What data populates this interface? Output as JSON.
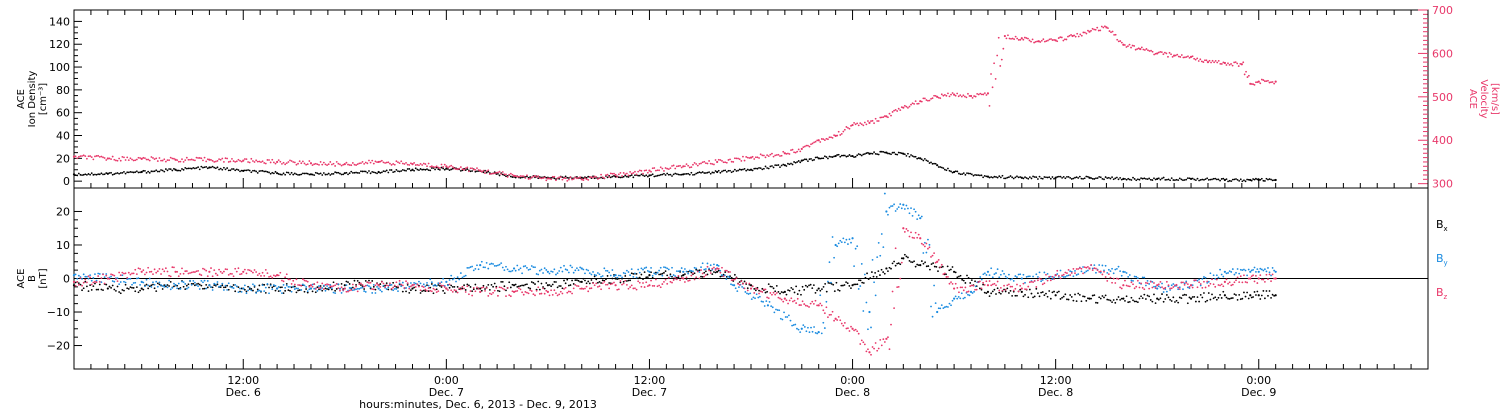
{
  "colors": {
    "black": "#000000",
    "red": "#e8386a",
    "blue": "#1a8be0"
  },
  "x_axis": {
    "ticks": [
      {
        "hours": 12,
        "time": "12:00",
        "date": "Dec. 6"
      },
      {
        "hours": 24,
        "time": "0:00",
        "date": "Dec. 7"
      },
      {
        "hours": 36,
        "time": "12:00",
        "date": "Dec. 7"
      },
      {
        "hours": 48,
        "time": "0:00",
        "date": "Dec. 8"
      },
      {
        "hours": 60,
        "time": "12:00",
        "date": "Dec. 8"
      },
      {
        "hours": 72,
        "time": "0:00",
        "date": "Dec. 9"
      }
    ],
    "xlabel": "hours:minutes, Dec.  6, 2013 - Dec.  9, 2013"
  },
  "chart_data": [
    {
      "type": "scatter",
      "panel": "top",
      "xlim": [
        2,
        82
      ],
      "left_axis": {
        "label_lines": [
          "ACE",
          "Ion Density",
          "[cm⁻³]"
        ],
        "ylim": [
          -6,
          150
        ],
        "ticks": [
          "0",
          "20",
          "40",
          "60",
          "80",
          "100",
          "120",
          "140"
        ],
        "tick_values": [
          0,
          20,
          40,
          60,
          80,
          100,
          120,
          140
        ]
      },
      "right_axis": {
        "label_lines": [
          "ACE",
          "Velocity",
          "[km/s]"
        ],
        "ylim": [
          290,
          700
        ],
        "ticks": [
          "300",
          "400",
          "500",
          "600",
          "700"
        ],
        "tick_values": [
          300,
          400,
          500,
          600,
          700
        ]
      },
      "series": [
        {
          "name": "",
          "axis": "left",
          "color": "#000000",
          "points": [
            [
              2,
              6
            ],
            [
              4,
              6.5
            ],
            [
              6,
              8
            ],
            [
              8,
              10
            ],
            [
              10,
              12
            ],
            [
              12,
              9
            ],
            [
              14,
              7
            ],
            [
              16,
              6
            ],
            [
              18,
              7
            ],
            [
              20,
              8
            ],
            [
              22,
              10
            ],
            [
              24,
              11
            ],
            [
              26,
              9
            ],
            [
              28,
              4
            ],
            [
              30,
              3
            ],
            [
              32,
              3
            ],
            [
              34,
              4
            ],
            [
              36,
              5
            ],
            [
              38,
              6
            ],
            [
              40,
              8
            ],
            [
              42,
              10
            ],
            [
              44,
              14
            ],
            [
              45,
              18
            ],
            [
              46,
              20
            ],
            [
              47,
              22
            ],
            [
              48,
              22
            ],
            [
              49,
              24
            ],
            [
              50,
              25
            ],
            [
              51,
              24
            ],
            [
              52,
              20
            ],
            [
              53,
              14
            ],
            [
              54,
              8
            ],
            [
              56,
              4
            ],
            [
              58,
              3
            ],
            [
              60,
              3
            ],
            [
              62,
              3
            ],
            [
              64,
              2
            ],
            [
              66,
              2
            ],
            [
              68,
              2
            ],
            [
              70,
              1
            ],
            [
              71.5,
              1
            ],
            [
              72,
              1
            ],
            [
              73,
              1
            ]
          ]
        },
        {
          "name": "",
          "axis": "right",
          "color": "#e8386a",
          "points": [
            [
              2,
              362
            ],
            [
              4,
              358
            ],
            [
              6,
              357
            ],
            [
              8,
              355
            ],
            [
              10,
              355
            ],
            [
              12,
              353
            ],
            [
              14,
              350
            ],
            [
              16,
              347
            ],
            [
              18,
              345
            ],
            [
              20,
              350
            ],
            [
              22,
              345
            ],
            [
              24,
              340
            ],
            [
              26,
              330
            ],
            [
              28,
              318
            ],
            [
              30,
              312
            ],
            [
              32,
              310
            ],
            [
              34,
              320
            ],
            [
              36,
              330
            ],
            [
              38,
              340
            ],
            [
              40,
              350
            ],
            [
              42,
              360
            ],
            [
              44,
              370
            ],
            [
              45,
              380
            ],
            [
              46,
              400
            ],
            [
              47,
              410
            ],
            [
              48,
              435
            ],
            [
              49,
              440
            ],
            [
              50,
              455
            ],
            [
              51,
              475
            ],
            [
              52,
              490
            ],
            [
              53,
              500
            ],
            [
              54,
              505
            ],
            [
              55,
              502
            ],
            [
              56,
              508
            ],
            [
              57,
              640
            ],
            [
              58,
              635
            ],
            [
              59,
              628
            ],
            [
              60,
              630
            ],
            [
              61,
              640
            ],
            [
              62,
              650
            ],
            [
              63,
              660
            ],
            [
              64,
              620
            ],
            [
              65,
              610
            ],
            [
              66,
              600
            ],
            [
              67,
              595
            ],
            [
              68,
              592
            ],
            [
              69,
              580
            ],
            [
              70,
              578
            ],
            [
              71,
              575
            ],
            [
              71.5,
              530
            ],
            [
              72,
              535
            ],
            [
              73,
              535
            ]
          ]
        }
      ]
    },
    {
      "type": "scatter",
      "panel": "bottom",
      "xlim": [
        2,
        82
      ],
      "left_axis": {
        "label_lines": [
          "ACE",
          "B",
          "[nT]"
        ],
        "ylim": [
          -27,
          27
        ],
        "ticks": [
          "−20",
          "−10",
          "0",
          "10",
          "20"
        ],
        "tick_values": [
          -20,
          -10,
          0,
          10,
          20
        ]
      },
      "zero_line": true,
      "legend": [
        {
          "base": "B",
          "sub": "x",
          "color": "#000000"
        },
        {
          "base": "B",
          "sub": "y",
          "color": "#1a8be0"
        },
        {
          "base": "B",
          "sub": "z",
          "color": "#e8386a"
        }
      ],
      "series": [
        {
          "name": "Bx",
          "axis": "left",
          "color": "#000000",
          "points": [
            [
              2,
              -2
            ],
            [
              4,
              -3
            ],
            [
              6,
              -3
            ],
            [
              8,
              -2
            ],
            [
              10,
              -2
            ],
            [
              12,
              -3
            ],
            [
              14,
              -3
            ],
            [
              16,
              -3
            ],
            [
              18,
              -2
            ],
            [
              20,
              -2
            ],
            [
              22,
              -3
            ],
            [
              24,
              -3
            ],
            [
              26,
              -3
            ],
            [
              28,
              -2
            ],
            [
              30,
              -2
            ],
            [
              32,
              -1
            ],
            [
              34,
              0
            ],
            [
              36,
              1
            ],
            [
              38,
              1
            ],
            [
              40,
              2
            ],
            [
              42,
              -2
            ],
            [
              44,
              -4
            ],
            [
              46,
              -3
            ],
            [
              48,
              -2
            ],
            [
              50,
              3
            ],
            [
              51,
              6
            ],
            [
              52,
              4
            ],
            [
              54,
              2
            ],
            [
              56,
              -4
            ],
            [
              58,
              -4
            ],
            [
              60,
              -5
            ],
            [
              62,
              -6
            ],
            [
              64,
              -6
            ],
            [
              66,
              -6
            ],
            [
              68,
              -6
            ],
            [
              70,
              -5
            ],
            [
              71.5,
              -5
            ],
            [
              72,
              -5
            ],
            [
              73,
              -5
            ]
          ]
        },
        {
          "name": "By",
          "axis": "left",
          "color": "#1a8be0",
          "points": [
            [
              2,
              1
            ],
            [
              4,
              0
            ],
            [
              6,
              -1
            ],
            [
              8,
              -2
            ],
            [
              10,
              -2
            ],
            [
              12,
              -3
            ],
            [
              14,
              -3
            ],
            [
              16,
              -3
            ],
            [
              18,
              -3
            ],
            [
              20,
              -3
            ],
            [
              22,
              -2
            ],
            [
              24,
              -1
            ],
            [
              26,
              4
            ],
            [
              28,
              3
            ],
            [
              30,
              2
            ],
            [
              32,
              3
            ],
            [
              34,
              1
            ],
            [
              36,
              2
            ],
            [
              38,
              2
            ],
            [
              40,
              4
            ],
            [
              41,
              -2
            ],
            [
              43,
              -8
            ],
            [
              45,
              -15
            ],
            [
              46,
              -16
            ],
            [
              47,
              10
            ],
            [
              48,
              12
            ],
            [
              49,
              -10
            ],
            [
              50,
              20
            ],
            [
              51,
              22
            ],
            [
              52,
              18
            ],
            [
              53,
              -10
            ],
            [
              54,
              -6
            ],
            [
              55,
              -4
            ],
            [
              56,
              2
            ],
            [
              58,
              0
            ],
            [
              60,
              1
            ],
            [
              62,
              3
            ],
            [
              64,
              2
            ],
            [
              66,
              -3
            ],
            [
              68,
              -2
            ],
            [
              70,
              2
            ],
            [
              71.5,
              2
            ],
            [
              72,
              2
            ],
            [
              73,
              2
            ]
          ]
        },
        {
          "name": "Bz",
          "axis": "left",
          "color": "#e8386a",
          "points": [
            [
              2,
              -1
            ],
            [
              4,
              0
            ],
            [
              6,
              2
            ],
            [
              8,
              2
            ],
            [
              10,
              2
            ],
            [
              12,
              2
            ],
            [
              14,
              1
            ],
            [
              16,
              -2
            ],
            [
              18,
              -3
            ],
            [
              20,
              -2
            ],
            [
              22,
              -2
            ],
            [
              24,
              -3
            ],
            [
              26,
              -4
            ],
            [
              28,
              -4
            ],
            [
              30,
              -4
            ],
            [
              32,
              -3
            ],
            [
              34,
              -2
            ],
            [
              36,
              -2
            ],
            [
              38,
              0
            ],
            [
              40,
              3
            ],
            [
              42,
              -3
            ],
            [
              44,
              -6
            ],
            [
              46,
              -8
            ],
            [
              47,
              -12
            ],
            [
              48,
              -15
            ],
            [
              49,
              -22
            ],
            [
              50,
              -18
            ],
            [
              51,
              15
            ],
            [
              52,
              12
            ],
            [
              53,
              5
            ],
            [
              54,
              -3
            ],
            [
              56,
              -2
            ],
            [
              58,
              -3
            ],
            [
              60,
              1
            ],
            [
              62,
              3
            ],
            [
              64,
              -2
            ],
            [
              66,
              -2
            ],
            [
              68,
              -2
            ],
            [
              70,
              -1
            ],
            [
              71.5,
              0
            ],
            [
              72,
              0
            ],
            [
              73,
              0
            ]
          ]
        }
      ]
    }
  ]
}
